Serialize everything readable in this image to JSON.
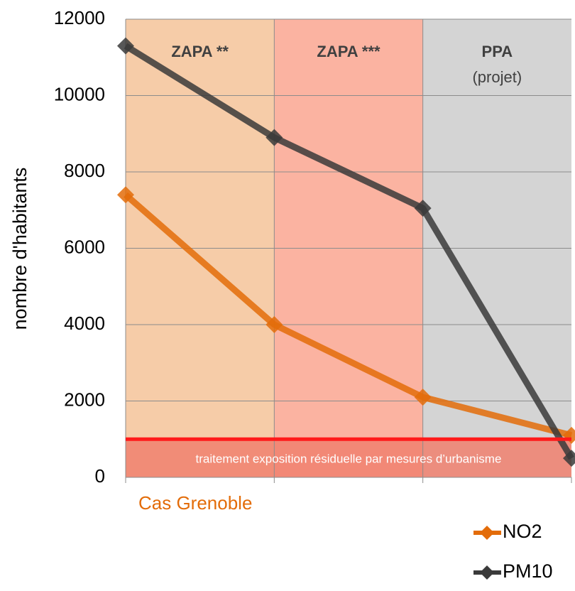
{
  "chart_data": {
    "type": "line",
    "categories": [
      null,
      null,
      null,
      null
    ],
    "series": [
      {
        "name": "NO2",
        "color": "#e36c09",
        "values": [
          7400,
          4000,
          2100,
          1100
        ]
      },
      {
        "name": "PM10",
        "color": "#3a3a3a",
        "values": [
          11300,
          8900,
          7050,
          500
        ]
      }
    ],
    "ylim": [
      0,
      12000
    ],
    "yticks": [
      0,
      2000,
      4000,
      6000,
      8000,
      10000,
      12000
    ],
    "ylabel": "nombre d'habitants",
    "grid": true,
    "legend": "bottom-right",
    "regions": [
      {
        "label": "ZAPA **",
        "color": "#f6cca8"
      },
      {
        "label": "ZAPA ***",
        "color": "#fbb3a1"
      },
      {
        "label": "PPA",
        "sublabel": "(projet)",
        "color": "#d4d4d4"
      }
    ],
    "threshold": {
      "value": 1000,
      "label": "traitement exposition résiduelle par mesures d’urbanisme",
      "color": "#ff1a1a",
      "band_color": "#f0806e"
    },
    "annotation": "Cas Grenoble"
  }
}
